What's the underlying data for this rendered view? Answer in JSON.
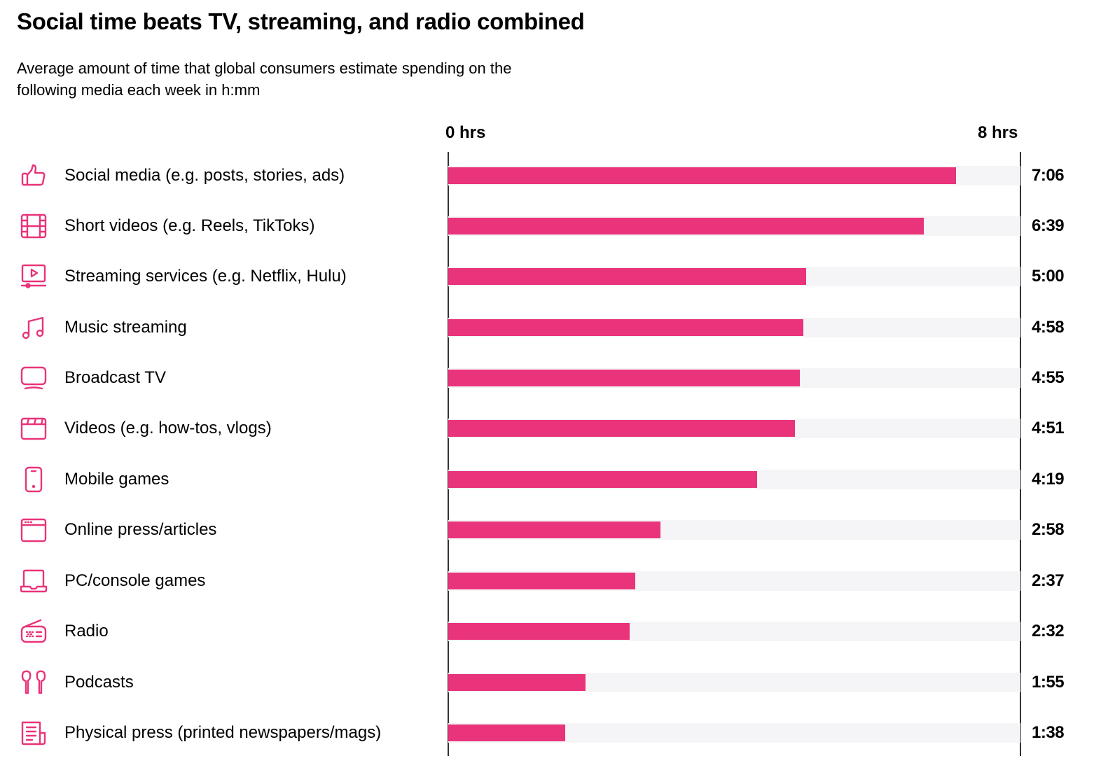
{
  "title": "Social time beats TV, streaming, and radio combined",
  "subtitle": "Average amount of time that global consumers estimate spending on the following media each week in h:mm",
  "chart_data": {
    "type": "bar",
    "orientation": "horizontal",
    "title": "Social time beats TV, streaming, and radio combined",
    "subtitle": "Average amount of time that global consumers estimate spending on the following media each week in h:mm",
    "xlim_hours": [
      0,
      8
    ],
    "tick_labels": [
      "0 hrs",
      "8 hrs"
    ],
    "grid": false,
    "bar_color": "#E9337A",
    "track_color": "#F5F5F7",
    "categories": [
      "Social media (e.g. posts, stories, ads)",
      "Short videos (e.g. Reels, TikToks)",
      "Streaming services (e.g. Netflix, Hulu)",
      "Music streaming",
      "Broadcast TV",
      "Videos (e.g. how-tos, vlogs)",
      "Mobile games",
      "Online press/articles",
      "PC/console games",
      "Radio",
      "Podcasts",
      "Physical press (printed newspapers/mags)"
    ],
    "icons": [
      "thumbs-up",
      "film-strip",
      "streaming-screen",
      "music-note",
      "tv",
      "clapperboard",
      "mobile-phone",
      "browser-window",
      "laptop",
      "radio",
      "earbuds",
      "newspaper"
    ],
    "value_labels": [
      "7:06",
      "6:39",
      "5:00",
      "4:58",
      "4:55",
      "4:51",
      "4:19",
      "2:58",
      "2:37",
      "2:32",
      "1:55",
      "1:38"
    ]
  }
}
